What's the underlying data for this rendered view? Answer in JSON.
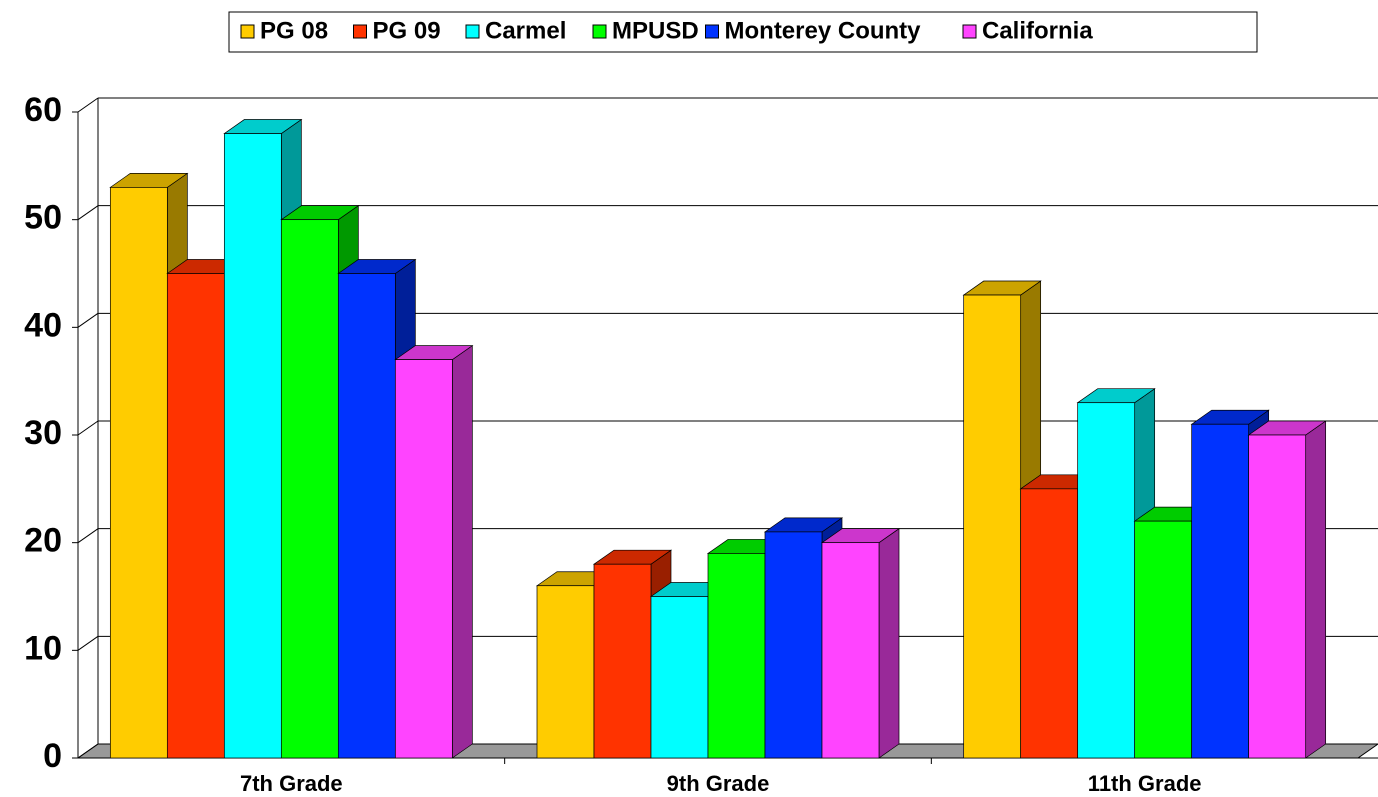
{
  "chart_data": {
    "type": "bar3d",
    "categories": [
      "7th Grade",
      "9th Grade",
      "11th Grade"
    ],
    "series": [
      {
        "name": "PG 08",
        "color": "#ffcc00",
        "values": [
          53,
          16,
          43
        ]
      },
      {
        "name": "PG 09",
        "color": "#ff3300",
        "values": [
          45,
          18,
          25
        ]
      },
      {
        "name": "Carmel",
        "color": "#00ffff",
        "values": [
          58,
          15,
          33
        ]
      },
      {
        "name": "MPUSD",
        "color": "#00ff00",
        "values": [
          50,
          19,
          22
        ]
      },
      {
        "name": "Monterey County",
        "color": "#0033ff",
        "values": [
          45,
          21,
          31
        ]
      },
      {
        "name": "California",
        "color": "#ff44ff",
        "values": [
          37,
          20,
          30
        ]
      }
    ],
    "ylim": [
      0,
      60
    ],
    "yticks": [
      0,
      10,
      20,
      30,
      40,
      50,
      60
    ],
    "grid": true,
    "legend": "top"
  }
}
